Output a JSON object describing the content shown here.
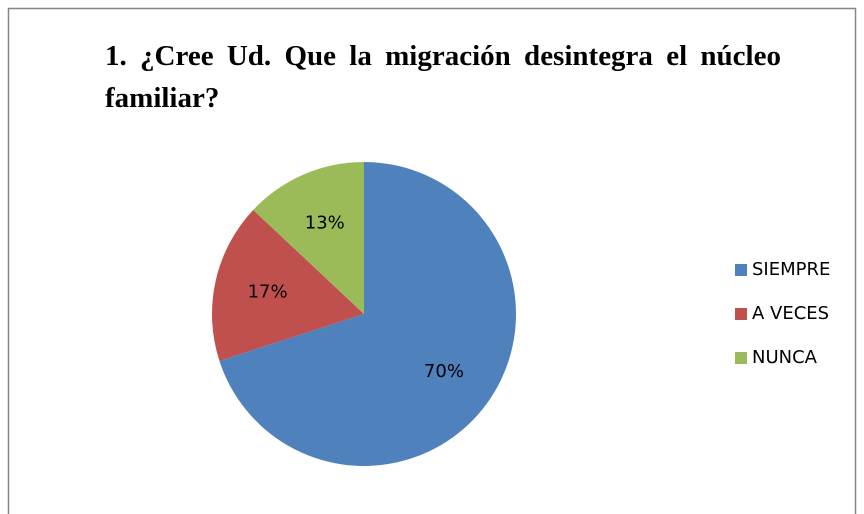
{
  "chart_data": {
    "type": "pie",
    "title": "1. ¿Cree Ud. Que la migración desintegra el núcleo familiar?",
    "categories": [
      "SIEMPRE",
      "A VECES",
      "NUNCA"
    ],
    "values": [
      70,
      17,
      13
    ],
    "value_labels": [
      "70%",
      "17%",
      "13%"
    ],
    "colors": [
      "#4f81bd",
      "#c0504d",
      "#9bbb59"
    ],
    "legend": "right"
  }
}
